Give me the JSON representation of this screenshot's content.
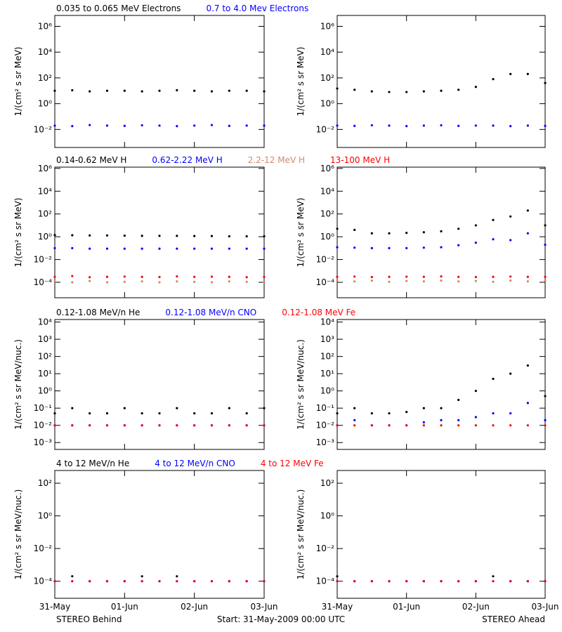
{
  "chart_data": {
    "type": "scatter",
    "log_y": true,
    "x": [
      "2009-05-31T00:00",
      "2009-05-31T06:00",
      "2009-05-31T12:00",
      "2009-05-31T18:00",
      "2009-06-01T00:00",
      "2009-06-01T06:00",
      "2009-06-01T12:00",
      "2009-06-01T18:00",
      "2009-06-02T00:00",
      "2009-06-02T06:00",
      "2009-06-02T12:00",
      "2009-06-02T18:00",
      "2009-06-03T00:00"
    ],
    "xlim": [
      "2009-05-31T00:00",
      "2009-06-03T00:00"
    ],
    "xticks": [
      {
        "value": "2009-05-31T00:00",
        "label": "31-May"
      },
      {
        "value": "2009-06-01T00:00",
        "label": "01-Jun"
      },
      {
        "value": "2009-06-02T00:00",
        "label": "02-Jun"
      },
      {
        "value": "2009-06-03T00:00",
        "label": "03-Jun"
      }
    ],
    "start_label": "Start: 31-May-2009 00:00 UTC",
    "panel_titles": [
      "STEREO Behind",
      "STEREO Ahead"
    ],
    "rows": [
      {
        "ylabel": "1/(cm² s sr MeV)",
        "ylim": [
          0.0004,
          7000000
        ],
        "yticks": [
          {
            "value": 0.01,
            "label": "10⁻²"
          },
          {
            "value": 1,
            "label": "10⁰"
          },
          {
            "value": 100,
            "label": "10²"
          },
          {
            "value": 10000,
            "label": "10⁴"
          },
          {
            "value": 1000000,
            "label": "10⁶"
          }
        ],
        "series": [
          {
            "name": "0.035 to 0.065 MeV Electrons",
            "color": "#000000",
            "behind": [
              10,
              11,
              9,
              10,
              10,
              9,
              10,
              11,
              10,
              9,
              10,
              10,
              9
            ],
            "ahead": [
              15,
              12,
              9,
              8,
              8,
              9,
              10,
              12,
              20,
              80,
              200,
              200,
              40
            ]
          },
          {
            "name": "0.7 to 4.0 Mev Electrons",
            "color": "#0000ff",
            "behind": [
              0.02,
              0.018,
              0.022,
              0.02,
              0.019,
              0.021,
              0.02,
              0.018,
              0.02,
              0.022,
              0.019,
              0.02,
              0.02
            ],
            "ahead": [
              0.02,
              0.019,
              0.021,
              0.02,
              0.018,
              0.02,
              0.021,
              0.019,
              0.02,
              0.02,
              0.018,
              0.02,
              0.019
            ]
          }
        ]
      },
      {
        "ylabel": "1/(cm² s sr MeV)",
        "ylim": [
          4.4e-06,
          1300000
        ],
        "yticks": [
          {
            "value": 0.0001,
            "label": "10⁻⁴"
          },
          {
            "value": 0.01,
            "label": "10⁻²"
          },
          {
            "value": 1,
            "label": "10⁰"
          },
          {
            "value": 100,
            "label": "10²"
          },
          {
            "value": 10000,
            "label": "10⁴"
          },
          {
            "value": 1000000,
            "label": "10⁶"
          }
        ],
        "series": [
          {
            "name": "0.14-0.62 MeV H",
            "color": "#000000",
            "behind": [
              1.4,
              1.35,
              1.3,
              1.3,
              1.25,
              1.2,
              1.2,
              1.2,
              1.15,
              1.15,
              1.1,
              1.1,
              1.1
            ],
            "ahead": [
              5,
              4,
              2,
              2,
              2.2,
              2.5,
              3,
              5,
              10,
              30,
              60,
              200,
              10
            ]
          },
          {
            "name": "0.62-2.22 MeV H",
            "color": "#0000ff",
            "behind": [
              0.1,
              0.1,
              0.09,
              0.09,
              0.09,
              0.09,
              0.09,
              0.09,
              0.09,
              0.09,
              0.09,
              0.09,
              0.09
            ],
            "ahead": [
              0.12,
              0.11,
              0.1,
              0.1,
              0.1,
              0.11,
              0.12,
              0.18,
              0.3,
              0.6,
              0.5,
              2,
              0.2
            ]
          },
          {
            "name": "2.2-12 MeV H",
            "color": "#d08a6a",
            "behind": [
              0.00012,
              0.0001,
              0.00013,
              0.0001,
              0.00011,
              0.00012,
              0.0001,
              0.00012,
              0.00011,
              0.0001,
              0.00012,
              0.00011,
              0.0001
            ],
            "ahead": [
              0.00015,
              0.00012,
              0.00014,
              0.00011,
              0.00013,
              0.00012,
              0.00014,
              0.00012,
              0.00013,
              0.00011,
              0.00014,
              0.00012,
              0.00013
            ]
          },
          {
            "name": "13-100 MeV H",
            "color": "#ff0000",
            "behind": [
              0.0003,
              0.00035,
              0.00028,
              0.0003,
              0.00032,
              0.0003,
              0.00029,
              0.00033,
              0.0003,
              0.00031,
              0.0003,
              0.00028,
              0.0003
            ],
            "ahead": [
              0.0003,
              0.00032,
              0.00029,
              0.0003,
              0.00031,
              0.0003,
              0.00033,
              0.0003,
              0.00029,
              0.0003,
              0.00032,
              0.0003,
              0.0003
            ]
          }
        ]
      },
      {
        "ylabel": "1/(cm² s sr MeV/nuc.)",
        "ylim": [
          0.0004,
          14000
        ],
        "yticks": [
          {
            "value": 0.001,
            "label": "10⁻³"
          },
          {
            "value": 0.01,
            "label": "10⁻²"
          },
          {
            "value": 0.1,
            "label": "10⁻¹"
          },
          {
            "value": 1,
            "label": "10⁰"
          },
          {
            "value": 10,
            "label": "10¹"
          },
          {
            "value": 100,
            "label": "10²"
          },
          {
            "value": 1000,
            "label": "10³"
          },
          {
            "value": 10000,
            "label": "10⁴"
          }
        ],
        "series": [
          {
            "name": "0.12-1.08 MeV/n He",
            "color": "#000000",
            "behind": [
              0.05,
              0.1,
              0.05,
              0.05,
              0.1,
              0.05,
              0.05,
              0.1,
              0.05,
              0.05,
              0.1,
              0.05,
              0.1
            ],
            "ahead": [
              0.05,
              0.1,
              0.05,
              0.05,
              0.06,
              0.1,
              0.1,
              0.3,
              1,
              5,
              10,
              30,
              0.5
            ]
          },
          {
            "name": "0.12-1.08 MeV/n CNO",
            "color": "#0000ff",
            "behind": [
              0.01,
              0.01,
              0.01,
              0.01,
              0.01,
              0.01,
              0.01,
              0.01,
              0.01,
              0.01,
              0.01,
              0.01,
              0.01
            ],
            "ahead": [
              0.01,
              0.02,
              0.01,
              0.01,
              0.01,
              0.015,
              0.02,
              0.02,
              0.03,
              0.05,
              0.05,
              0.2,
              0.02
            ]
          },
          {
            "name": "0.12-1.08 MeV Fe",
            "color": "#ff0000",
            "behind": [
              0.01,
              0.01,
              0.01,
              0.01,
              0.01,
              0.01,
              0.01,
              0.01,
              0.01,
              0.01,
              0.01,
              0.01,
              0.01
            ],
            "ahead": [
              0.01,
              0.01,
              0.01,
              0.01,
              0.01,
              0.01,
              0.01,
              0.01,
              0.01,
              0.01,
              0.01,
              0.01,
              0.01
            ]
          }
        ]
      },
      {
        "ylabel": "1/(cm² s sr MeV/nuc.)",
        "ylim": [
          9e-06,
          600
        ],
        "yticks": [
          {
            "value": 0.0001,
            "label": "10⁻⁴"
          },
          {
            "value": 0.01,
            "label": "10⁻²"
          },
          {
            "value": 1,
            "label": "10⁰"
          },
          {
            "value": 100,
            "label": "10²"
          }
        ],
        "series": [
          {
            "name": "4 to 12 MeV/n He",
            "color": "#000000",
            "behind": [
              0.0001,
              0.0002,
              0.0001,
              0.0001,
              0.0001,
              0.0002,
              0.0001,
              0.0002,
              0.0001,
              0.0001,
              0.0001,
              0.0001,
              0.0001
            ],
            "ahead": [
              0.0002,
              0.0001,
              0.0001,
              0.0001,
              0.0001,
              0.0001,
              0.0001,
              0.0001,
              0.0001,
              0.0002,
              0.0001,
              0.0001,
              0.0001
            ]
          },
          {
            "name": "4 to 12 MeV/n CNO",
            "color": "#0000ff",
            "behind": [
              0.0001,
              0.0001,
              0.0001,
              0.0001,
              0.0001,
              0.0001,
              0.0001,
              0.0001,
              0.0001,
              0.0001,
              0.0001,
              0.0001,
              0.0001
            ],
            "ahead": [
              0.0001,
              0.0001,
              0.0001,
              0.0001,
              0.0001,
              0.0001,
              0.0001,
              0.0001,
              0.0001,
              0.0001,
              0.0001,
              0.0001,
              0.0001
            ]
          },
          {
            "name": "4 to 12 MeV Fe",
            "color": "#ff0000",
            "behind": [
              0.0001,
              0.0001,
              0.0001,
              0.0001,
              0.0001,
              0.0001,
              0.0001,
              0.0001,
              0.0001,
              0.0001,
              0.0001,
              0.0001,
              0.0001
            ],
            "ahead": [
              0.0001,
              0.0001,
              0.0001,
              0.0001,
              0.0001,
              0.0001,
              0.0001,
              0.0001,
              0.0001,
              0.0001,
              0.0001,
              0.0001,
              0.0001
            ]
          }
        ]
      }
    ]
  }
}
